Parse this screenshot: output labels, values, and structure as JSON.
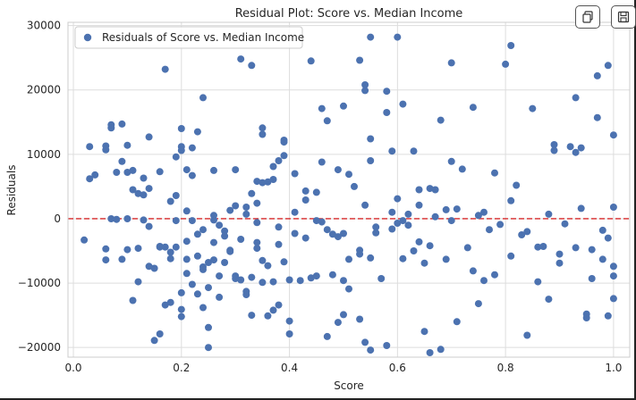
{
  "toolbar": {
    "copy_icon": "copy-icon",
    "save_icon": "floppy-disk-icon"
  },
  "chart_data": {
    "type": "scatter",
    "title": "Residual Plot: Score vs. Median Income",
    "xlabel": "Score",
    "ylabel": "Residuals",
    "xlim": [
      -0.01,
      1.03
    ],
    "ylim": [
      -21500,
      30500
    ],
    "xticks": [
      0.0,
      0.2,
      0.4,
      0.6,
      0.8,
      1.0
    ],
    "xtick_labels": [
      "0.0",
      "0.2",
      "0.4",
      "0.6",
      "0.8",
      "1.0"
    ],
    "yticks": [
      -20000,
      -10000,
      0,
      10000,
      20000,
      30000
    ],
    "ytick_labels": [
      "−20000",
      "−10000",
      "0",
      "10000",
      "20000",
      "30000"
    ],
    "grid": true,
    "legend_position": "top-left",
    "reference_line": {
      "y": 0,
      "color": "#d62728",
      "style": "dashed"
    },
    "series": [
      {
        "name": "Residuals of Score vs. Median Income",
        "color": "#4c72b0",
        "points": [
          [
            0.02,
            -3300
          ],
          [
            0.03,
            6200
          ],
          [
            0.03,
            11200
          ],
          [
            0.04,
            6800
          ],
          [
            0.06,
            11300
          ],
          [
            0.06,
            10700
          ],
          [
            0.06,
            -4700
          ],
          [
            0.06,
            -6400
          ],
          [
            0.07,
            14600
          ],
          [
            0.07,
            14100
          ],
          [
            0.07,
            0
          ],
          [
            0.08,
            -100
          ],
          [
            0.08,
            7200
          ],
          [
            0.09,
            8900
          ],
          [
            0.09,
            14700
          ],
          [
            0.09,
            -6300
          ],
          [
            0.1,
            7200
          ],
          [
            0.1,
            11400
          ],
          [
            0.1,
            -4800
          ],
          [
            0.1,
            0.0
          ],
          [
            0.11,
            4500
          ],
          [
            0.11,
            -12700
          ],
          [
            0.11,
            7500
          ],
          [
            0.12,
            3900
          ],
          [
            0.12,
            -9800
          ],
          [
            0.12,
            -4600
          ],
          [
            0.13,
            3700
          ],
          [
            0.13,
            6300
          ],
          [
            0.13,
            -200
          ],
          [
            0.14,
            12700
          ],
          [
            0.14,
            4700
          ],
          [
            0.14,
            -7400
          ],
          [
            0.14,
            -1200
          ],
          [
            0.15,
            -7700
          ],
          [
            0.15,
            -18900
          ],
          [
            0.16,
            -17900
          ],
          [
            0.16,
            7300
          ],
          [
            0.16,
            -4400
          ],
          [
            0.16,
            -4300
          ],
          [
            0.17,
            23200
          ],
          [
            0.17,
            -4400
          ],
          [
            0.17,
            -13400
          ],
          [
            0.18,
            2700
          ],
          [
            0.18,
            -13000
          ],
          [
            0.18,
            -5200
          ],
          [
            0.18,
            -6200
          ],
          [
            0.19,
            -300
          ],
          [
            0.19,
            -4400
          ],
          [
            0.19,
            9600
          ],
          [
            0.19,
            3600
          ],
          [
            0.2,
            14000
          ],
          [
            0.2,
            10600
          ],
          [
            0.2,
            11200
          ],
          [
            0.2,
            -11500
          ],
          [
            0.2,
            -14100
          ],
          [
            0.2,
            -15200
          ],
          [
            0.21,
            7600
          ],
          [
            0.21,
            1200
          ],
          [
            0.21,
            -3500
          ],
          [
            0.21,
            -6300
          ],
          [
            0.21,
            -8500
          ],
          [
            0.22,
            11000
          ],
          [
            0.22,
            6700
          ],
          [
            0.22,
            -300
          ],
          [
            0.22,
            -10200
          ],
          [
            0.23,
            -11700
          ],
          [
            0.23,
            13500
          ],
          [
            0.23,
            -2400
          ],
          [
            0.23,
            -5800
          ],
          [
            0.24,
            18800
          ],
          [
            0.24,
            -1700
          ],
          [
            0.24,
            -7500
          ],
          [
            0.24,
            -7900
          ],
          [
            0.24,
            -13800
          ],
          [
            0.25,
            -6800
          ],
          [
            0.25,
            -10700
          ],
          [
            0.25,
            -16900
          ],
          [
            0.25,
            -20000
          ],
          [
            0.26,
            7500
          ],
          [
            0.26,
            -200
          ],
          [
            0.26,
            -3700
          ],
          [
            0.26,
            -6400
          ],
          [
            0.26,
            500
          ],
          [
            0.27,
            -1000
          ],
          [
            0.27,
            -8900
          ],
          [
            0.27,
            -12200
          ],
          [
            0.28,
            -2700
          ],
          [
            0.28,
            -1900
          ],
          [
            0.28,
            -6800
          ],
          [
            0.29,
            1300
          ],
          [
            0.29,
            -4900
          ],
          [
            0.29,
            -5100
          ],
          [
            0.3,
            7600
          ],
          [
            0.3,
            2000
          ],
          [
            0.3,
            -8900
          ],
          [
            0.3,
            -9300
          ],
          [
            0.31,
            24800
          ],
          [
            0.31,
            -9500
          ],
          [
            0.31,
            -3200
          ],
          [
            0.32,
            700
          ],
          [
            0.32,
            1800
          ],
          [
            0.32,
            -11800
          ],
          [
            0.32,
            -11300
          ],
          [
            0.33,
            23800
          ],
          [
            0.33,
            3900
          ],
          [
            0.33,
            -15000
          ],
          [
            0.33,
            -9100
          ],
          [
            0.34,
            -3700
          ],
          [
            0.34,
            2400
          ],
          [
            0.34,
            5800
          ],
          [
            0.34,
            -4600
          ],
          [
            0.34,
            -600
          ],
          [
            0.35,
            13100
          ],
          [
            0.35,
            14100
          ],
          [
            0.35,
            5600
          ],
          [
            0.35,
            -6500
          ],
          [
            0.35,
            -9900
          ],
          [
            0.36,
            5700
          ],
          [
            0.36,
            -7300
          ],
          [
            0.36,
            -15100
          ],
          [
            0.37,
            8100
          ],
          [
            0.37,
            6100
          ],
          [
            0.37,
            -14200
          ],
          [
            0.37,
            -9800
          ],
          [
            0.38,
            -1300
          ],
          [
            0.38,
            -13400
          ],
          [
            0.38,
            -4000
          ],
          [
            0.38,
            9000
          ],
          [
            0.39,
            12200
          ],
          [
            0.39,
            9800
          ],
          [
            0.39,
            11900
          ],
          [
            0.39,
            -6700
          ],
          [
            0.4,
            -9500
          ],
          [
            0.4,
            -17900
          ],
          [
            0.4,
            -15900
          ],
          [
            0.41,
            7000
          ],
          [
            0.41,
            -2300
          ],
          [
            0.41,
            1000
          ],
          [
            0.42,
            -9600
          ],
          [
            0.43,
            4300
          ],
          [
            0.43,
            2900
          ],
          [
            0.43,
            -3000
          ],
          [
            0.44,
            24500
          ],
          [
            0.44,
            -9200
          ],
          [
            0.45,
            4100
          ],
          [
            0.45,
            -8900
          ],
          [
            0.45,
            -300
          ],
          [
            0.46,
            17100
          ],
          [
            0.46,
            8800
          ],
          [
            0.46,
            -500
          ],
          [
            0.47,
            15200
          ],
          [
            0.47,
            -18300
          ],
          [
            0.47,
            -1700
          ],
          [
            0.48,
            -8700
          ],
          [
            0.48,
            -2400
          ],
          [
            0.49,
            7600
          ],
          [
            0.49,
            -2800
          ],
          [
            0.49,
            -16100
          ],
          [
            0.5,
            17500
          ],
          [
            0.5,
            -14900
          ],
          [
            0.5,
            -9600
          ],
          [
            0.5,
            -2300
          ],
          [
            0.51,
            6900
          ],
          [
            0.51,
            -10900
          ],
          [
            0.51,
            -6300
          ],
          [
            0.52,
            5000
          ],
          [
            0.53,
            24600
          ],
          [
            0.53,
            -4900
          ],
          [
            0.53,
            -15600
          ],
          [
            0.53,
            -5500
          ],
          [
            0.54,
            20800
          ],
          [
            0.54,
            19900
          ],
          [
            0.54,
            2100
          ],
          [
            0.54,
            -19200
          ],
          [
            0.55,
            28200
          ],
          [
            0.55,
            9000
          ],
          [
            0.55,
            12400
          ],
          [
            0.55,
            -20400
          ],
          [
            0.55,
            -6100
          ],
          [
            0.56,
            -1300
          ],
          [
            0.56,
            -2200
          ],
          [
            0.57,
            -9300
          ],
          [
            0.58,
            19800
          ],
          [
            0.58,
            16500
          ],
          [
            0.58,
            -19700
          ],
          [
            0.59,
            10500
          ],
          [
            0.59,
            1000
          ],
          [
            0.59,
            -1600
          ],
          [
            0.6,
            28200
          ],
          [
            0.6,
            3100
          ],
          [
            0.6,
            -700
          ],
          [
            0.61,
            17800
          ],
          [
            0.61,
            -300
          ],
          [
            0.61,
            -6200
          ],
          [
            0.62,
            700
          ],
          [
            0.62,
            -1000
          ],
          [
            0.63,
            10500
          ],
          [
            0.63,
            -5000
          ],
          [
            0.64,
            2100
          ],
          [
            0.64,
            4500
          ],
          [
            0.64,
            -3600
          ],
          [
            0.65,
            -6900
          ],
          [
            0.65,
            -17500
          ],
          [
            0.66,
            -20800
          ],
          [
            0.66,
            4700
          ],
          [
            0.66,
            -4200
          ],
          [
            0.67,
            4500
          ],
          [
            0.67,
            300
          ],
          [
            0.68,
            -20300
          ],
          [
            0.68,
            15300
          ],
          [
            0.69,
            -6300
          ],
          [
            0.69,
            1400
          ],
          [
            0.7,
            24200
          ],
          [
            0.7,
            8900
          ],
          [
            0.7,
            -300
          ],
          [
            0.71,
            -16000
          ],
          [
            0.71,
            1500
          ],
          [
            0.72,
            7700
          ],
          [
            0.73,
            -4500
          ],
          [
            0.74,
            17300
          ],
          [
            0.74,
            -8100
          ],
          [
            0.75,
            -13200
          ],
          [
            0.75,
            500
          ],
          [
            0.76,
            -9600
          ],
          [
            0.76,
            1000
          ],
          [
            0.77,
            -1700
          ],
          [
            0.78,
            7100
          ],
          [
            0.78,
            -8700
          ],
          [
            0.79,
            -900
          ],
          [
            0.8,
            24000
          ],
          [
            0.81,
            26900
          ],
          [
            0.81,
            2800
          ],
          [
            0.81,
            -5800
          ],
          [
            0.82,
            5200
          ],
          [
            0.83,
            -2500
          ],
          [
            0.84,
            -18100
          ],
          [
            0.84,
            -2000
          ],
          [
            0.85,
            17100
          ],
          [
            0.86,
            -4400
          ],
          [
            0.86,
            -9800
          ],
          [
            0.87,
            -4300
          ],
          [
            0.88,
            700
          ],
          [
            0.88,
            -12500
          ],
          [
            0.89,
            10600
          ],
          [
            0.89,
            11500
          ],
          [
            0.9,
            -5500
          ],
          [
            0.9,
            -6900
          ],
          [
            0.91,
            -800
          ],
          [
            0.92,
            11200
          ],
          [
            0.93,
            -4500
          ],
          [
            0.93,
            18800
          ],
          [
            0.93,
            10300
          ],
          [
            0.94,
            11000
          ],
          [
            0.94,
            1600
          ],
          [
            0.95,
            -14800
          ],
          [
            0.95,
            -15400
          ],
          [
            0.96,
            -4800
          ],
          [
            0.96,
            -9300
          ],
          [
            0.97,
            15700
          ],
          [
            0.97,
            22200
          ],
          [
            0.98,
            -1800
          ],
          [
            0.98,
            -6300
          ],
          [
            0.99,
            23800
          ],
          [
            0.99,
            -15100
          ],
          [
            0.99,
            -3000
          ],
          [
            1.0,
            13000
          ],
          [
            1.0,
            1800
          ],
          [
            1.0,
            -7400
          ],
          [
            1.0,
            -8900
          ],
          [
            1.0,
            -12400
          ]
        ]
      }
    ]
  }
}
